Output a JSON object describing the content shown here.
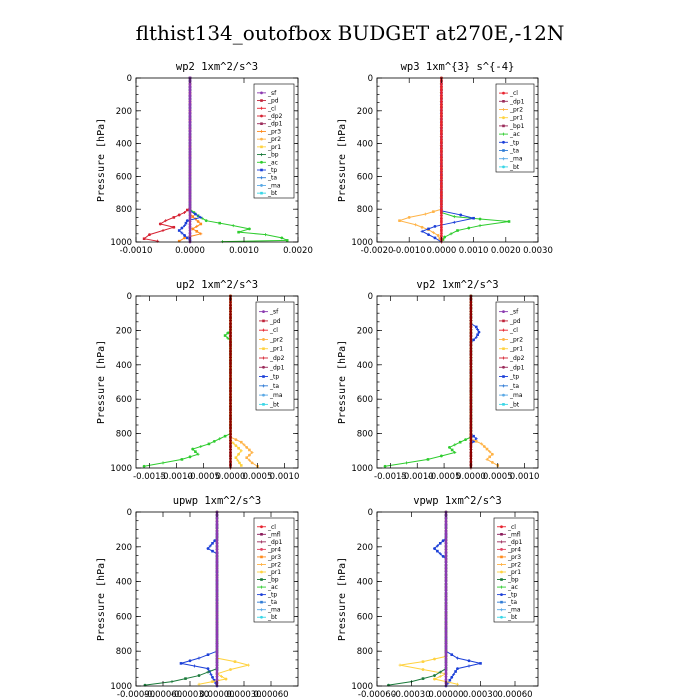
{
  "page_title": "flthist134_outofbox  BUDGET at270E,-12N",
  "colors": {
    "sf": "#8b3ab0",
    "pd": "#c0233a",
    "cl": "#e8232f",
    "dp2": "#d62232",
    "pr3": "#ff8a1c",
    "pr2": "#ffb347",
    "pr1": "#ffd23f",
    "bp": "#1a7a3a",
    "ac": "#2ecc2e",
    "tp": "#1b3fd8",
    "ta": "#2f7bd6",
    "ma": "#5aa9e6",
    "bt": "#38d6e6",
    "mfl": "#8b1a5a",
    "dp1": "#9b2b5a",
    "pr4": "#e04060",
    "ref": "#8b0000"
  },
  "chart_data": [
    {
      "type": "line",
      "title": "wp2   1xm^2/s^3",
      "ylabel": "Pressure [hPa]",
      "xlim": [
        -0.001,
        0.002
      ],
      "ylim": [
        0,
        1000
      ],
      "xticks": [
        -0.001,
        0.0,
        0.001,
        0.002
      ],
      "xtick_labels": [
        "-0.0010",
        "0.0000",
        "0.0010",
        "0.0020"
      ],
      "yticks": [
        0,
        200,
        400,
        600,
        800,
        1000
      ],
      "legend": [
        "_sf",
        "_pd",
        "_cl",
        "_dp2",
        "_dp1",
        "_pr3",
        "_pr2",
        "_pr1",
        "_bp",
        "_ac",
        "_tp",
        "_ta",
        "_ma",
        "_bt"
      ],
      "series": [
        {
          "name": "_ac",
          "color": "ac",
          "points": [
            [
              0,
              0
            ],
            [
              0,
              800
            ],
            [
              0.00015,
              840
            ],
            [
              0.0003,
              870
            ],
            [
              0.0008,
              900
            ],
            [
              0.0011,
              920
            ],
            [
              0.0009,
              940
            ],
            [
              0.0014,
              955
            ],
            [
              0.0017,
              975
            ],
            [
              0.0018,
              990
            ],
            [
              0.0006,
              998
            ]
          ]
        },
        {
          "name": "_dp2",
          "color": "dp2",
          "points": [
            [
              0,
              0
            ],
            [
              0,
              790
            ],
            [
              -0.0001,
              820
            ],
            [
              -0.0003,
              850
            ],
            [
              -0.00045,
              870
            ],
            [
              -0.00055,
              890
            ],
            [
              -0.0003,
              910
            ],
            [
              -0.0005,
              930
            ],
            [
              -0.00075,
              955
            ],
            [
              -0.00085,
              980
            ],
            [
              -0.0006,
              995
            ]
          ]
        },
        {
          "name": "_pr3",
          "color": "pr3",
          "points": [
            [
              0,
              0
            ],
            [
              0,
              830
            ],
            [
              0.0001,
              860
            ],
            [
              0.0002,
              890
            ],
            [
              5e-05,
              920
            ],
            [
              0.0002,
              950
            ],
            [
              -0.0001,
              975
            ],
            [
              -0.0002,
              995
            ]
          ]
        },
        {
          "name": "_tp",
          "color": "tp",
          "points": [
            [
              0,
              0
            ],
            [
              0,
              810
            ],
            [
              0.0001,
              830
            ],
            [
              0.0002,
              850
            ],
            [
              -5e-05,
              870
            ],
            [
              -0.0001,
              900
            ],
            [
              -0.0002,
              930
            ],
            [
              -0.0001,
              960
            ],
            [
              0,
              990
            ]
          ]
        },
        {
          "name": "_sf",
          "color": "sf",
          "points": [
            [
              0,
              0
            ],
            [
              0,
              1000
            ]
          ]
        }
      ]
    },
    {
      "type": "line",
      "title": "wp3   1xm^{3} s^{-4}",
      "ylabel": "Pressure [hPa]",
      "xlim": [
        -0.002,
        0.003
      ],
      "ylim": [
        0,
        1000
      ],
      "xticks": [
        -0.002,
        -0.001,
        0.0,
        0.001,
        0.002,
        0.003
      ],
      "xtick_labels": [
        "-0.0020",
        "-0.0010",
        "0.0000",
        "0.0010",
        "0.0020",
        "0.0030"
      ],
      "yticks": [
        0,
        200,
        400,
        600,
        800,
        1000
      ],
      "legend": [
        "_cl",
        "_dp1",
        "_pr2",
        "_pr1",
        "_bp1",
        "_ac",
        "_tp",
        "_ta",
        "_ma",
        "_bt"
      ],
      "series": [
        {
          "name": "_ac",
          "color": "ac",
          "points": [
            [
              0,
              0
            ],
            [
              0,
              820
            ],
            [
              0.0004,
              845
            ],
            [
              0.0012,
              860
            ],
            [
              0.0021,
              875
            ],
            [
              0.0012,
              900
            ],
            [
              0.0005,
              930
            ],
            [
              0.0001,
              970
            ],
            [
              0,
              1000
            ]
          ]
        },
        {
          "name": "_pr2",
          "color": "pr2",
          "points": [
            [
              0,
              0
            ],
            [
              0,
              800
            ],
            [
              -0.0005,
              830
            ],
            [
              -0.001,
              850
            ],
            [
              -0.0013,
              870
            ],
            [
              -0.0008,
              895
            ],
            [
              -0.0004,
              925
            ],
            [
              -0.0001,
              960
            ],
            [
              0,
              1000
            ]
          ]
        },
        {
          "name": "_tp",
          "color": "tp",
          "points": [
            [
              0,
              0
            ],
            [
              0,
              810
            ],
            [
              0.0006,
              835
            ],
            [
              0.001,
              855
            ],
            [
              0.0004,
              880
            ],
            [
              -0.0002,
              905
            ],
            [
              -0.0006,
              935
            ],
            [
              -0.0002,
              975
            ],
            [
              0,
              1000
            ]
          ]
        },
        {
          "name": "_cl",
          "color": "cl",
          "points": [
            [
              0,
              0
            ],
            [
              0,
              1000
            ]
          ]
        }
      ]
    },
    {
      "type": "line",
      "title": "up2   1xm^2/s^3",
      "ylabel": "Pressure [hPa]",
      "xlim": [
        -0.00175,
        0.00125
      ],
      "ylim": [
        0,
        1000
      ],
      "xticks": [
        -0.0015,
        -0.001,
        -0.0005,
        0.0,
        0.0005,
        0.001
      ],
      "xtick_labels": [
        "-0.0015",
        "-0.0010",
        "-0.0005",
        "0.0000",
        "0.0005",
        "0.0010"
      ],
      "yticks": [
        0,
        200,
        400,
        600,
        800,
        1000
      ],
      "legend": [
        "_sf",
        "_pd",
        "_cl",
        "_pr2",
        "_pr1",
        "_dp2",
        "_dp1",
        "_tp",
        "_ta",
        "_ma",
        "_bt"
      ],
      "series": [
        {
          "name": "_dp2",
          "color": "ac",
          "points": [
            [
              0,
              0
            ],
            [
              0,
              200
            ],
            [
              -0.0001,
              230
            ],
            [
              0,
              260
            ],
            [
              0,
              800
            ],
            [
              -0.0002,
              830
            ],
            [
              -0.0004,
              860
            ],
            [
              -0.0007,
              890
            ],
            [
              -0.0006,
              920
            ],
            [
              -0.0009,
              950
            ],
            [
              -0.0016,
              990
            ]
          ]
        },
        {
          "name": "_pr2",
          "color": "pr2",
          "points": [
            [
              0,
              0
            ],
            [
              0,
              820
            ],
            [
              0.0002,
              850
            ],
            [
              0.0003,
              880
            ],
            [
              0.0004,
              910
            ],
            [
              0.0003,
              940
            ],
            [
              0.0004,
              970
            ],
            [
              0.0005,
              990
            ]
          ]
        },
        {
          "name": "_pr1",
          "color": "pr1",
          "points": [
            [
              0,
              0
            ],
            [
              0,
              840
            ],
            [
              0.0001,
              870
            ],
            [
              0.0002,
              900
            ],
            [
              0.0001,
              940
            ],
            [
              0.0002,
              985
            ]
          ]
        },
        {
          "name": "_sf",
          "color": "ref",
          "points": [
            [
              0,
              0
            ],
            [
              0,
              1000
            ]
          ]
        }
      ]
    },
    {
      "type": "line",
      "title": "vp2   1xm^2/s^3",
      "ylabel": "Pressure [hPa]",
      "xlim": [
        -0.00175,
        0.00125
      ],
      "ylim": [
        0,
        1000
      ],
      "xticks": [
        -0.0015,
        -0.001,
        -0.0005,
        0.0,
        0.0005,
        0.001
      ],
      "xtick_labels": [
        "-0.0015",
        "-0.0010",
        "-0.0005",
        "0.0000",
        "0.0005",
        "0.0010"
      ],
      "yticks": [
        0,
        200,
        400,
        600,
        800,
        1000
      ],
      "legend": [
        "_sf",
        "_pd",
        "_cl",
        "_pr2",
        "_pr1",
        "_dp2",
        "_dp1",
        "_tp",
        "_ta",
        "_ma",
        "_bt"
      ],
      "series": [
        {
          "name": "_tp",
          "color": "tp",
          "points": [
            [
              0,
              0
            ],
            [
              0,
              160
            ],
            [
              0.0001,
              180
            ],
            [
              0.00015,
              210
            ],
            [
              0.0001,
              240
            ],
            [
              0,
              270
            ],
            [
              0,
              800
            ],
            [
              0.0001,
              830
            ],
            [
              0,
              860
            ]
          ]
        },
        {
          "name": "_dp2",
          "color": "ac",
          "points": [
            [
              0,
              0
            ],
            [
              0,
              820
            ],
            [
              -0.0002,
              850
            ],
            [
              -0.0004,
              880
            ],
            [
              -0.0003,
              910
            ],
            [
              -0.0008,
              950
            ],
            [
              -0.0016,
              990
            ]
          ]
        },
        {
          "name": "_pr2",
          "color": "pr2",
          "points": [
            [
              0,
              0
            ],
            [
              0,
              830
            ],
            [
              0.0002,
              860
            ],
            [
              0.0003,
              890
            ],
            [
              0.0004,
              920
            ],
            [
              0.0003,
              950
            ],
            [
              0.0005,
              985
            ]
          ]
        },
        {
          "name": "_sf",
          "color": "ref",
          "points": [
            [
              0,
              0
            ],
            [
              0,
              1000
            ]
          ]
        }
      ]
    },
    {
      "type": "line",
      "title": "upwp   1xm^2/s^3",
      "ylabel": "Pressure [hPa]",
      "xlim": [
        -0.0009,
        0.0009
      ],
      "ylim": [
        0,
        1000
      ],
      "xticks": [
        -0.0009,
        -0.0006,
        -0.0003,
        0.0,
        0.0003,
        0.0006
      ],
      "xtick_labels": [
        "-0.00090",
        "-0.00060",
        "-0.00030",
        "0.00000",
        "0.00030",
        "0.00060"
      ],
      "yticks": [
        0,
        200,
        400,
        600,
        800,
        1000
      ],
      "legend": [
        "_cl",
        "_mfl",
        "_dp1",
        "_pr4",
        "_pr3",
        "_pr2",
        "_pr1",
        "_bp",
        "_ac",
        "_tp",
        "_ta",
        "_ma",
        "_bt"
      ],
      "series": [
        {
          "name": "_ta",
          "color": "tp",
          "points": [
            [
              0,
              0
            ],
            [
              0,
              150
            ],
            [
              -5e-05,
              180
            ],
            [
              -0.0001,
              210
            ],
            [
              0,
              240
            ],
            [
              0,
              800
            ],
            [
              -0.0002,
              840
            ],
            [
              -0.0004,
              870
            ],
            [
              -0.0001,
              900
            ],
            [
              0,
              1000
            ]
          ]
        },
        {
          "name": "_pr2",
          "color": "pr1",
          "points": [
            [
              0,
              0
            ],
            [
              0,
              840
            ],
            [
              0.0002,
              860
            ],
            [
              0.00035,
              880
            ],
            [
              0.00015,
              905
            ],
            [
              0,
              930
            ],
            [
              0.0001,
              960
            ],
            [
              -0.0002,
              990
            ]
          ]
        },
        {
          "name": "_ac",
          "color": "bp",
          "points": [
            [
              0,
              0
            ],
            [
              0,
              900
            ],
            [
              -0.0002,
              940
            ],
            [
              -0.0005,
              975
            ],
            [
              -0.0008,
              995
            ]
          ]
        },
        {
          "name": "_cl",
          "color": "sf",
          "points": [
            [
              0,
              0
            ],
            [
              0,
              1000
            ]
          ]
        }
      ]
    },
    {
      "type": "line",
      "title": "vpwp   1xm^2/s^3",
      "ylabel": "Pressure [hPa]",
      "xlim": [
        -0.0006,
        0.0008
      ],
      "ylim": [
        0,
        1000
      ],
      "xticks": [
        -0.0006,
        -0.0003,
        0.0,
        0.0003,
        0.0006
      ],
      "xtick_labels": [
        "-0.00060",
        "-0.00030",
        "0.00000",
        "0.00030",
        "0.00060"
      ],
      "yticks": [
        0,
        200,
        400,
        600,
        800,
        1000
      ],
      "legend": [
        "_cl",
        "_mfl",
        "_dp1",
        "_pr4",
        "_pr3",
        "_pr2",
        "_pr1",
        "_bp",
        "_ac",
        "_tp",
        "_ta",
        "_ma",
        "_bt"
      ],
      "series": [
        {
          "name": "_ta",
          "color": "tp",
          "points": [
            [
              0,
              0
            ],
            [
              0,
              150
            ],
            [
              -5e-05,
              180
            ],
            [
              -0.0001,
              210
            ],
            [
              -5e-05,
              240
            ],
            [
              0,
              270
            ],
            [
              0,
              800
            ],
            [
              0.0001,
              840
            ],
            [
              0.0003,
              870
            ],
            [
              0.0001,
              900
            ],
            [
              0,
              1000
            ]
          ]
        },
        {
          "name": "_pr2",
          "color": "pr1",
          "points": [
            [
              0,
              0
            ],
            [
              0,
              830
            ],
            [
              -0.0002,
              860
            ],
            [
              -0.0004,
              880
            ],
            [
              -0.0002,
              905
            ],
            [
              0,
              930
            ],
            [
              -0.0001,
              960
            ],
            [
              0.0001,
              990
            ]
          ]
        },
        {
          "name": "_ac",
          "color": "bp",
          "points": [
            [
              0,
              0
            ],
            [
              0,
              900
            ],
            [
              -0.0001,
              940
            ],
            [
              -0.0003,
              975
            ],
            [
              -0.0005,
              995
            ]
          ]
        },
        {
          "name": "_cl",
          "color": "sf",
          "points": [
            [
              0,
              0
            ],
            [
              0,
              1000
            ]
          ]
        }
      ]
    }
  ]
}
